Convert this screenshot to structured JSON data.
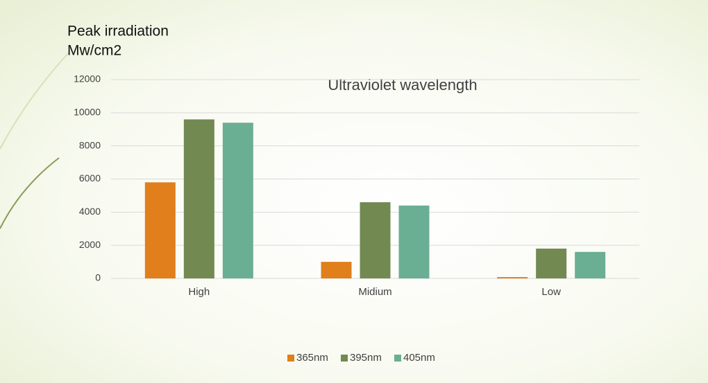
{
  "chart_data": {
    "type": "bar",
    "title": "Ultraviolet wavelength",
    "ylabel_lines": [
      "Peak irradiation",
      "Mw/cm2"
    ],
    "categories": [
      "High",
      "Midium",
      "Low"
    ],
    "series": [
      {
        "name": "365nm",
        "color": "#e07f1b",
        "values": [
          5800,
          1000,
          80
        ]
      },
      {
        "name": "395nm",
        "color": "#728a52",
        "values": [
          9600,
          4600,
          1800
        ]
      },
      {
        "name": "405nm",
        "color": "#6aae94",
        "values": [
          9400,
          4400,
          1600
        ]
      }
    ],
    "ylim": [
      0,
      12000
    ],
    "yticks": [
      0,
      2000,
      4000,
      6000,
      8000,
      10000,
      12000
    ],
    "grid": true,
    "legend": "bottom"
  }
}
